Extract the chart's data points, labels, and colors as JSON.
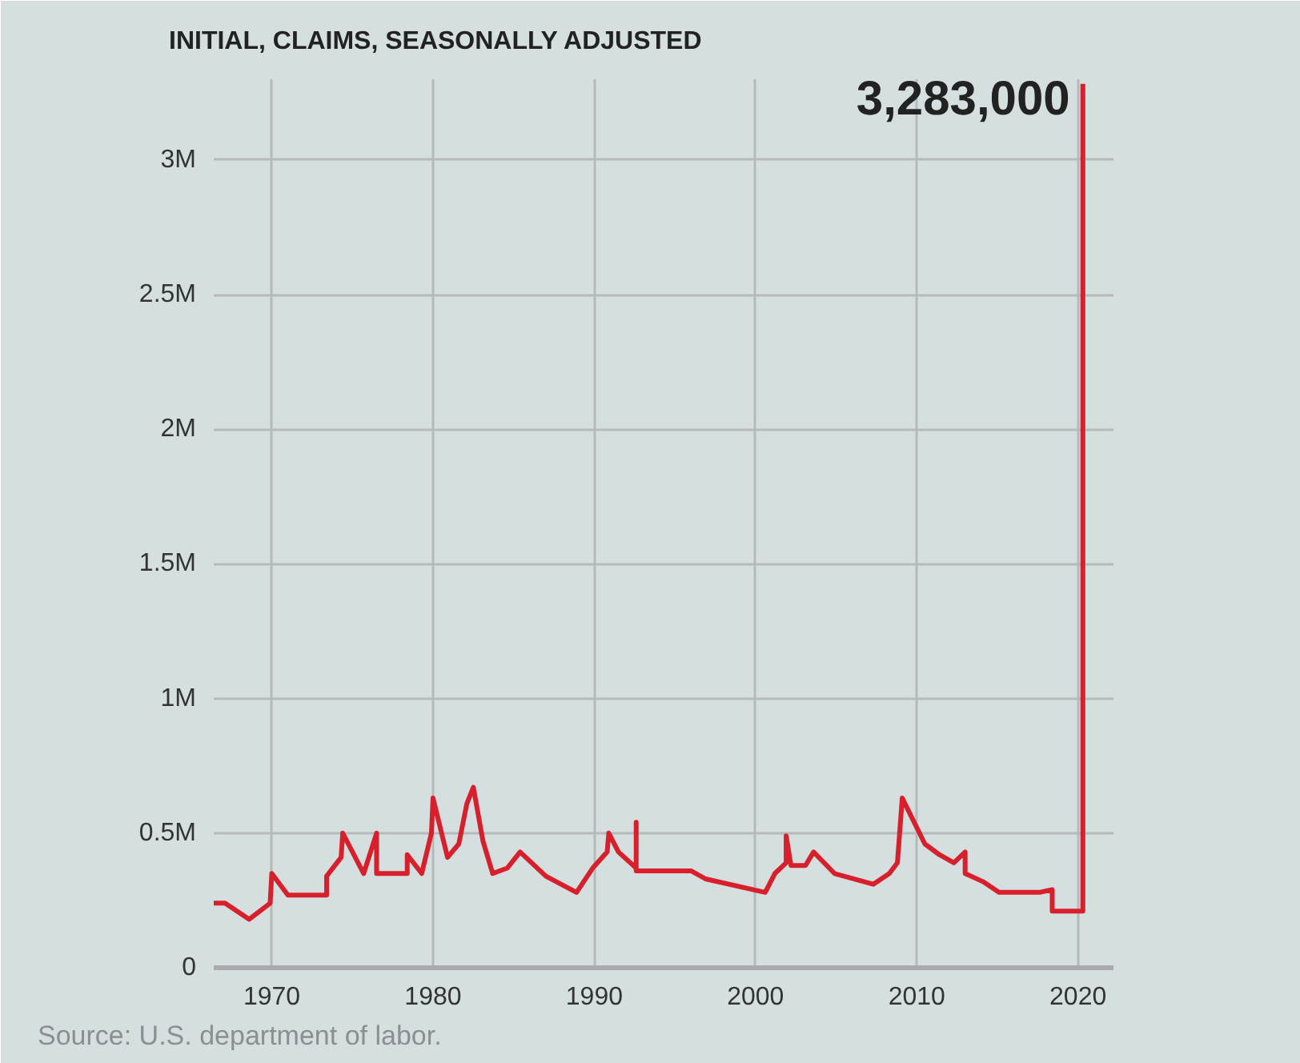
{
  "chart_data": {
    "type": "line",
    "title": "INITIAL, CLAIMS, SEASONALLY ADJUSTED",
    "x": [
      1966.4,
      1967.1,
      1968.6,
      1969.9,
      1970.0,
      1971.0,
      1973.4,
      1973.4,
      1974.3,
      1974.4,
      1975.7,
      1976.5,
      1976.5,
      1978.4,
      1978.4,
      1979.3,
      1979.9,
      1980.0,
      1980.9,
      1981.6,
      1982.1,
      1982.5,
      1983.1,
      1983.7,
      1984.6,
      1985.4,
      1987.0,
      1988.9,
      1989.9,
      1990.8,
      1990.9,
      1991.5,
      1992.6,
      1992.6,
      1992.6,
      1996.0,
      1996.9,
      2000.6,
      2001.2,
      2001.9,
      2001.9,
      2002.2,
      2003.1,
      2003.6,
      2004.9,
      2007.3,
      2008.3,
      2008.8,
      2009.1,
      2010.5,
      2011.4,
      2012.3,
      2013.0,
      2013.0,
      2014.1,
      2015.1,
      2017.6,
      2018.4,
      2018.4,
      2020.3,
      2020.3
    ],
    "series": [
      {
        "color": "#d7202b",
        "values": [
          0.24,
          0.24,
          0.18,
          0.24,
          0.35,
          0.27,
          0.27,
          0.34,
          0.41,
          0.5,
          0.35,
          0.5,
          0.35,
          0.35,
          0.42,
          0.35,
          0.5,
          0.63,
          0.41,
          0.46,
          0.61,
          0.67,
          0.47,
          0.35,
          0.37,
          0.43,
          0.34,
          0.28,
          0.37,
          0.43,
          0.5,
          0.43,
          0.37,
          0.54,
          0.36,
          0.36,
          0.33,
          0.28,
          0.35,
          0.39,
          0.49,
          0.38,
          0.38,
          0.43,
          0.35,
          0.31,
          0.35,
          0.39,
          0.63,
          0.46,
          0.42,
          0.39,
          0.43,
          0.35,
          0.32,
          0.28,
          0.28,
          0.29,
          0.21,
          0.21,
          3.283
        ]
      }
    ],
    "xlim": [
      1966.4,
      2022.2
    ],
    "xticks": [
      1970,
      1980,
      1990,
      2000,
      2010,
      2020
    ],
    "ylim": [
      0,
      3.3
    ],
    "yticks": [
      {
        "value": 0,
        "label": "0"
      },
      {
        "value": 0.5,
        "label": "0.5M"
      },
      {
        "value": 1,
        "label": "1M"
      },
      {
        "value": 1.5,
        "label": "1.5M"
      },
      {
        "value": 2,
        "label": "2M"
      },
      {
        "value": 2.5,
        "label": "2.5M"
      },
      {
        "value": 3,
        "label": "3M"
      }
    ],
    "grid": true,
    "marker": "none",
    "line_style": "solid",
    "annotations": [
      {
        "text": "3,283,000",
        "x": 2020.3,
        "y": 3.283
      },
      "Source: U.S. department of labor."
    ]
  }
}
